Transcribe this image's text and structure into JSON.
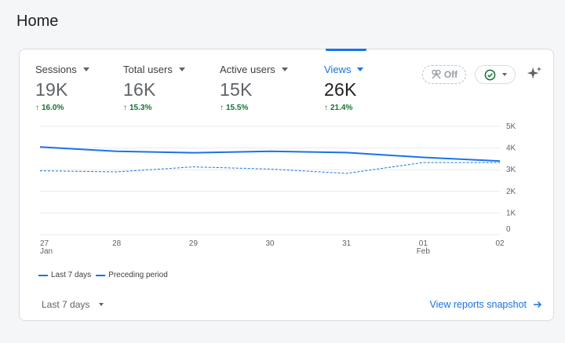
{
  "page": {
    "title": "Home"
  },
  "metrics": [
    {
      "name": "Sessions",
      "value": "19K",
      "delta": "16.0%"
    },
    {
      "name": "Total users",
      "value": "16K",
      "delta": "15.3%"
    },
    {
      "name": "Active users",
      "value": "15K",
      "delta": "15.5%"
    },
    {
      "name": "Views",
      "value": "26K",
      "delta": "21.4%",
      "active": true
    }
  ],
  "controls": {
    "comparison_chip_label": "Off",
    "date_range_label": "Last 7 days",
    "view_link_label": "View reports snapshot"
  },
  "icons": {
    "comparison": "comparison-icon",
    "check": "check-circle-icon",
    "sparkle": "sparkle-icon",
    "arrow": "arrow-right-icon"
  },
  "colors": {
    "accent": "#1a73e8",
    "positive": "#137333"
  },
  "chart_data": {
    "type": "line",
    "categories": [
      "27",
      "28",
      "29",
      "30",
      "31",
      "01",
      "02"
    ],
    "category_sublabels": [
      "Jan",
      "",
      "",
      "",
      "",
      "Feb",
      ""
    ],
    "series": [
      {
        "name": "Last 7 days",
        "style": "solid",
        "values": [
          4050,
          3850,
          3780,
          3850,
          3790,
          3570,
          3400
        ]
      },
      {
        "name": "Preceding period",
        "style": "dashed",
        "values": [
          2950,
          2900,
          3130,
          3030,
          2830,
          3330,
          3330
        ]
      }
    ],
    "y_ticks": [
      "5K",
      "4K",
      "3K",
      "2K",
      "1K",
      "0"
    ],
    "ylim": [
      0,
      5000
    ],
    "grid": true,
    "legend_position": "bottom-left"
  }
}
